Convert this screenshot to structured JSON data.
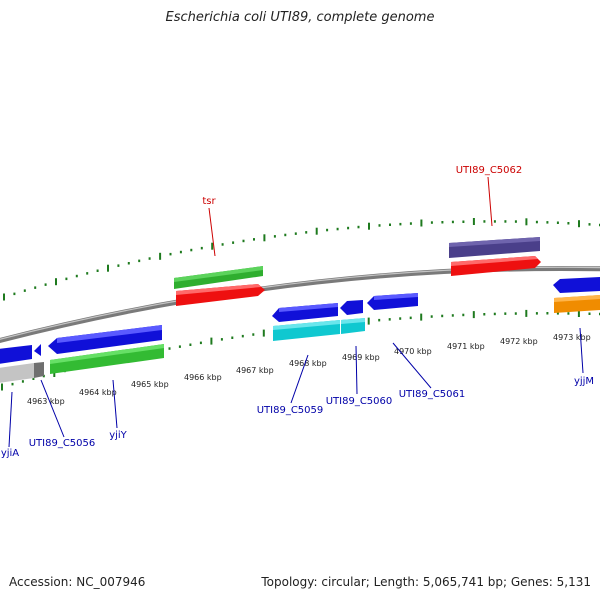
{
  "title": "Escherichia coli UTI89, complete genome",
  "footer": {
    "accession": "Accession: NC_007946",
    "summary": "Topology: circular; Length: 5,065,741 bp; Genes: 5,131"
  },
  "colors": {
    "backbone": "#808080",
    "ticks": "#1e7a1e",
    "gene_blue": "#1010d8",
    "gene_red": "#ee1010",
    "gene_green": "#33bb33",
    "gene_purple": "#4a3f8a",
    "gene_cyan": "#10c8d0",
    "gene_orange": "#f08c00",
    "gene_gray": "#9a9a9a",
    "label_blue": "#0000a8",
    "label_red": "#cc0000"
  },
  "scale": {
    "kbp": {
      "k4963": "4963 kbp",
      "k4964": "4964 kbp",
      "k4965": "4965 kbp",
      "k4966": "4966 kbp",
      "k4967": "4967 kbp",
      "k4968": "4968 kbp",
      "k4969": "4969 kbp",
      "k4970": "4970 kbp",
      "k4971": "4971 kbp",
      "k4972": "4972 kbp",
      "k4973": "4973 kbp"
    }
  },
  "genes": {
    "tsr": "tsr",
    "c5062": "UTI89_C5062",
    "yjiA": "yjiA",
    "c5056": "UTI89_C5056",
    "yjiY": "yjiY",
    "c5059": "UTI89_C5059",
    "c5060": "UTI89_C5060",
    "c5061": "UTI89_C5061",
    "yjjM": "yjjM"
  }
}
